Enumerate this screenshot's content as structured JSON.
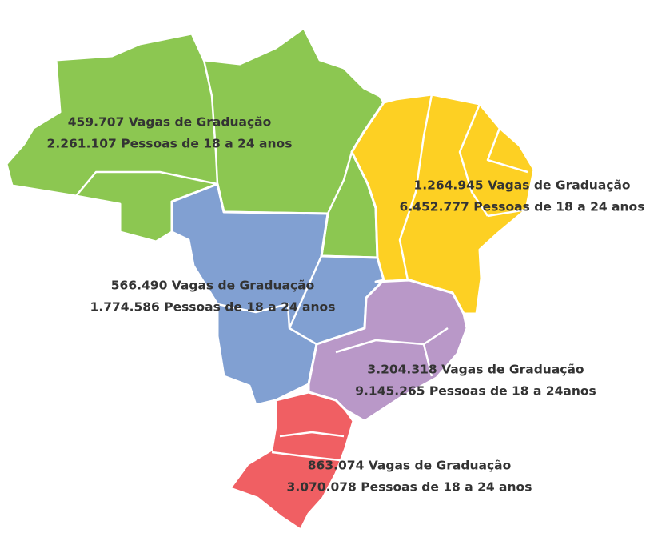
{
  "regions": [
    {
      "lines": [
        "459.707 Vagas de Graduação",
        "2.261.107 Pessoas de 18 a 24 anos"
      ]
    },
    {
      "lines": [
        "1.264.945 Vagas de Graduação",
        "6.452.777 Pessoas de 18 a 24 anos"
      ]
    },
    {
      "lines": [
        "566.490 Vagas de Graduação",
        "1.774.586 Pessoas de 18 a 24 anos"
      ]
    },
    {
      "lines": [
        "3.204.318 Vagas de Graduação",
        "9.145.265 Pessoas de 18 a 24anos"
      ]
    },
    {
      "lines": [
        "863.074 Vagas de Graduação",
        "3.070.078 Pessoas de 18 a 24 anos"
      ]
    }
  ]
}
